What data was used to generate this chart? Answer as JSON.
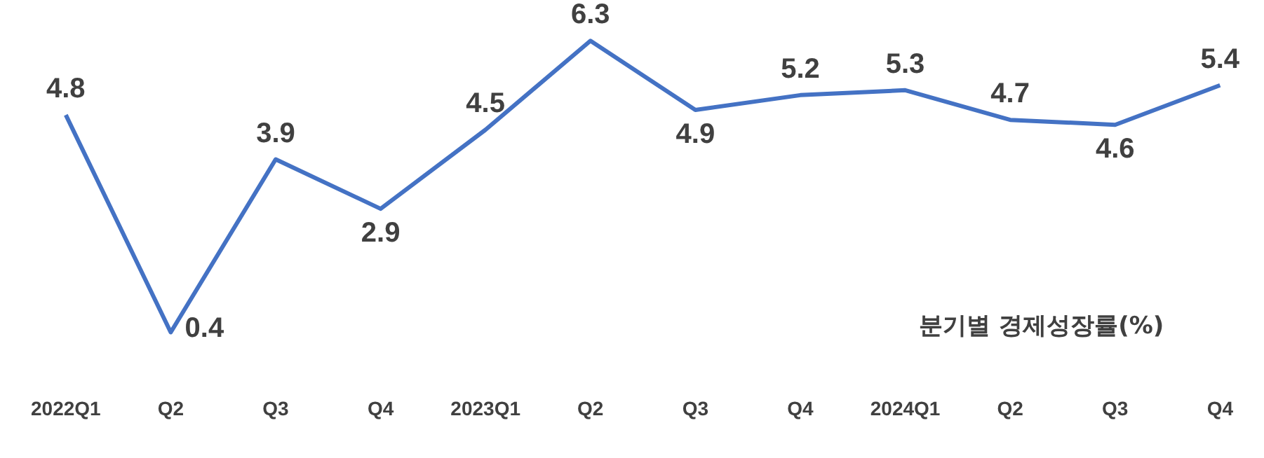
{
  "chart_data": {
    "type": "line",
    "categories": [
      "2022Q1",
      "Q2",
      "Q3",
      "Q4",
      "2023Q1",
      "Q2",
      "Q3",
      "Q4",
      "2024Q1",
      "Q2",
      "Q3",
      "Q4"
    ],
    "series": [
      {
        "color": "#4472c4",
        "values": [
          4.8,
          0.4,
          3.9,
          2.9,
          4.5,
          6.3,
          4.9,
          5.2,
          5.3,
          4.7,
          4.6,
          5.4
        ]
      }
    ],
    "data_labels": true,
    "tick_labels": "x",
    "grid": false,
    "legend": false,
    "marker": "none",
    "line_style": "solid",
    "annotations": [
      "분기별 경제성장률(%)"
    ]
  }
}
